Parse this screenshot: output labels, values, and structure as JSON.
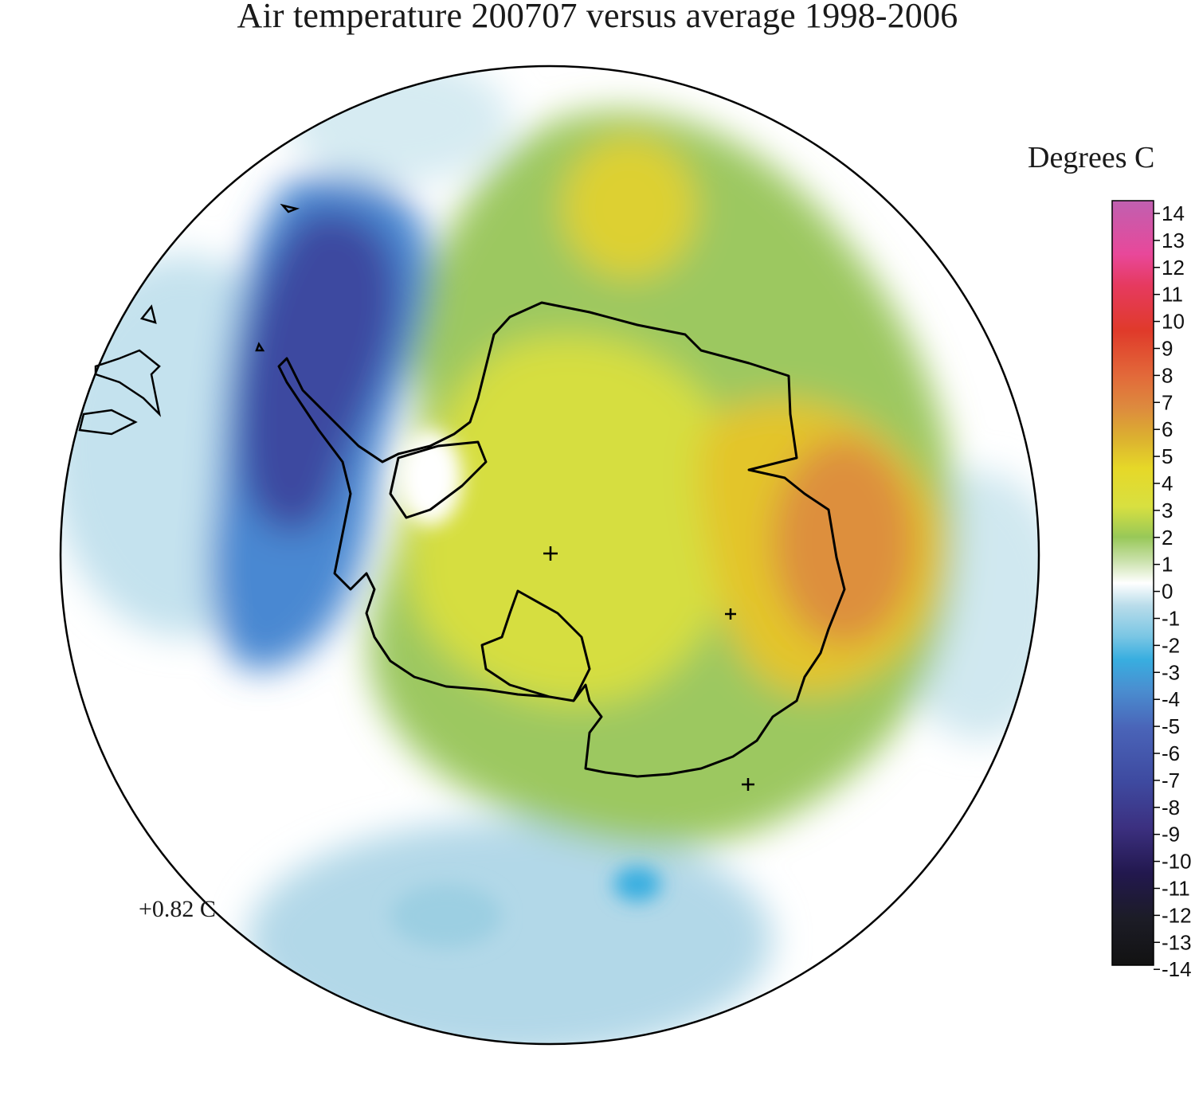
{
  "title": "Air temperature 200707 versus average 1998-2006",
  "legend": {
    "title": "Degrees C",
    "ticks": [
      "14",
      "13",
      "12",
      "11",
      "10",
      "9",
      "8",
      "7",
      "6",
      "5",
      "4",
      "3",
      "2",
      "1",
      "0",
      "-1",
      "-2",
      "-3",
      "-4",
      "-5",
      "-6",
      "-7",
      "-8",
      "-9",
      "-10",
      "-11",
      "-12",
      "-13",
      "-14"
    ],
    "colors": [
      "#c060b0",
      "#e8489a",
      "#e63a78",
      "#e03a40",
      "#e03a2a",
      "#e25030",
      "#e2683a",
      "#dd8a3e",
      "#dcb030",
      "#e2d228",
      "#eee430",
      "#c8da48",
      "#98c858",
      "#b8d890",
      "#ffffff",
      "#b8dcea",
      "#7ac6e4",
      "#38aee0",
      "#4a8ed0",
      "#4a6cc0",
      "#4a58b0",
      "#3e4aa0",
      "#4a3e90",
      "#3c3080",
      "#2a2266",
      "#20184e",
      "#1c1830",
      "#202024",
      "#141414"
    ]
  },
  "global_mean": "+0.82 C",
  "map": {
    "projection": "south polar stereographic",
    "region": "Antarctica and Southern Ocean",
    "anomaly_features": [
      {
        "region": "Amundsen-Bellingshausen Sea / west of Antarctic Peninsula",
        "anomaly_c": -8
      },
      {
        "region": "Southern Pacific (lower part)",
        "anomaly_c": -1
      },
      {
        "region": "East Antarctica interior",
        "anomaly_c": 3
      },
      {
        "region": "Weddell Sea sector (top)",
        "anomaly_c": 5
      },
      {
        "region": "Indian Ocean sector / Wilkes Land coast (right)",
        "anomaly_c": 6
      }
    ],
    "markers": [
      "South Pole",
      "station",
      "station"
    ]
  }
}
